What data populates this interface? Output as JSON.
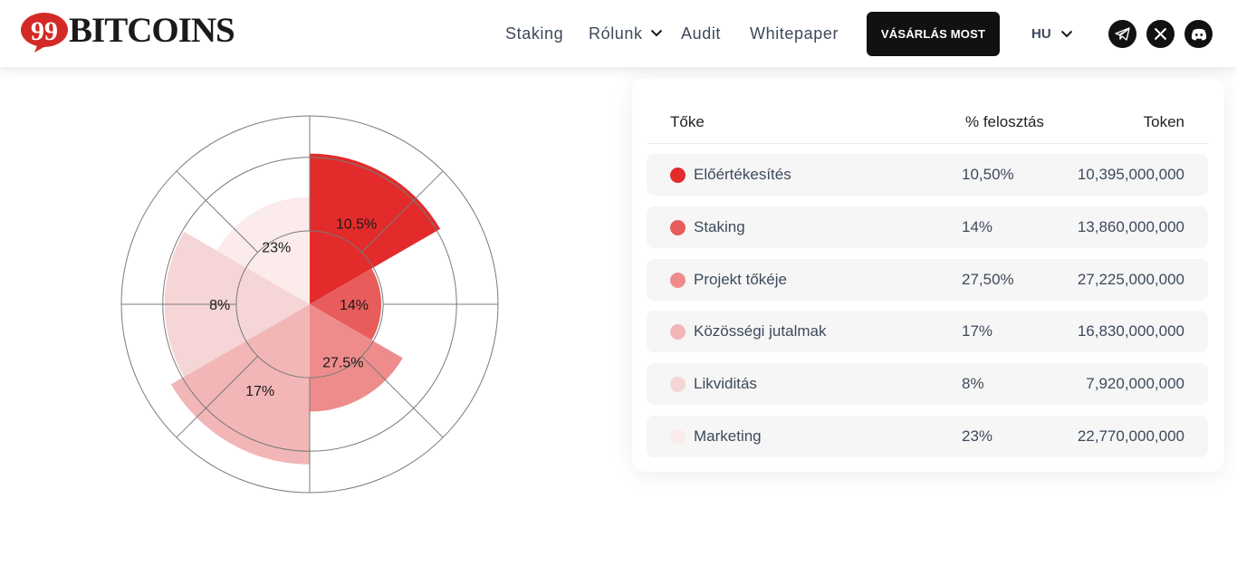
{
  "brand": {
    "logo_number": "99",
    "logo_text": "BITCOINS",
    "logo_color": "#d42a27"
  },
  "nav": {
    "items": [
      {
        "label": "Staking",
        "has_dropdown": false
      },
      {
        "label": "Rólunk",
        "has_dropdown": true
      },
      {
        "label": "Audit",
        "has_dropdown": false
      },
      {
        "label": "Whitepaper",
        "has_dropdown": false
      }
    ],
    "buy_label": "VÁSÁRLÁS MOST",
    "language": "HU",
    "social": [
      "telegram-icon",
      "x-icon",
      "discord-icon"
    ]
  },
  "chart_data": {
    "type": "polar-area",
    "series": [
      {
        "label": "10.5%",
        "value": 10.5,
        "radius_level": 0.8,
        "color": "#e32b2b"
      },
      {
        "label": "14%",
        "value": 14,
        "radius_level": 0.38,
        "color": "#e85c5c"
      },
      {
        "label": "27.5%",
        "value": 27.5,
        "radius_level": 0.57,
        "color": "#ee8c8c"
      },
      {
        "label": "17%",
        "value": 17,
        "radius_level": 0.85,
        "color": "#f2b6b6"
      },
      {
        "label": "8%",
        "value": 8,
        "radius_level": 0.77,
        "color": "#f5d5d5"
      },
      {
        "label": "23%",
        "value": 23,
        "radius_level": 0.57,
        "color": "#fbebeb"
      }
    ],
    "grid": true
  },
  "table": {
    "headers": {
      "name": "Tőke",
      "percent": "% felosztás",
      "token": "Token"
    },
    "rows": [
      {
        "name": "Előértékesítés",
        "percent": "10,50%",
        "token": "10,395,000,000",
        "color": "#e32b2b"
      },
      {
        "name": "Staking",
        "percent": "14%",
        "token": "13,860,000,000",
        "color": "#e85c5c"
      },
      {
        "name": "Projekt tőkéje",
        "percent": "27,50%",
        "token": "27,225,000,000",
        "color": "#ee8c8c"
      },
      {
        "name": "Közösségi jutalmak",
        "percent": "17%",
        "token": "16,830,000,000",
        "color": "#f2b6b6"
      },
      {
        "name": "Likviditás",
        "percent": "8%",
        "token": "7,920,000,000",
        "color": "#f5d5d5"
      },
      {
        "name": "Marketing",
        "percent": "23%",
        "token": "22,770,000,000",
        "color": "#fbebeb"
      }
    ]
  }
}
